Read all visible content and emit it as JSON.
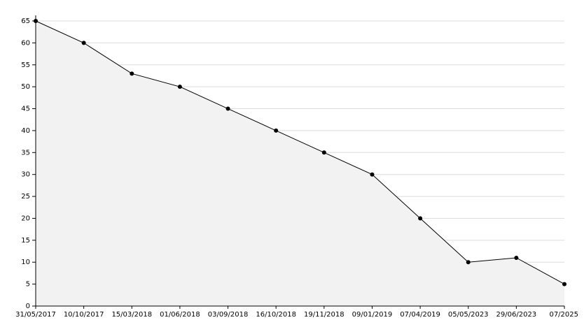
{
  "chart_data": {
    "type": "area",
    "categories": [
      "31/05/2017",
      "10/10/2017",
      "15/03/2018",
      "01/06/2018",
      "03/09/2018",
      "16/10/2018",
      "19/11/2018",
      "09/01/2019",
      "07/04/2019",
      "05/05/2023",
      "29/06/2023",
      "07/2025"
    ],
    "values": [
      65,
      60,
      53,
      50,
      45,
      40,
      35,
      30,
      20,
      10,
      11,
      5
    ],
    "color": "#000000",
    "fill_color": "#f2f2f2",
    "ylim": [
      0,
      65
    ],
    "yticks": [
      0,
      5,
      10,
      15,
      20,
      25,
      30,
      35,
      40,
      45,
      50,
      55,
      60,
      65
    ],
    "grid": true
  }
}
